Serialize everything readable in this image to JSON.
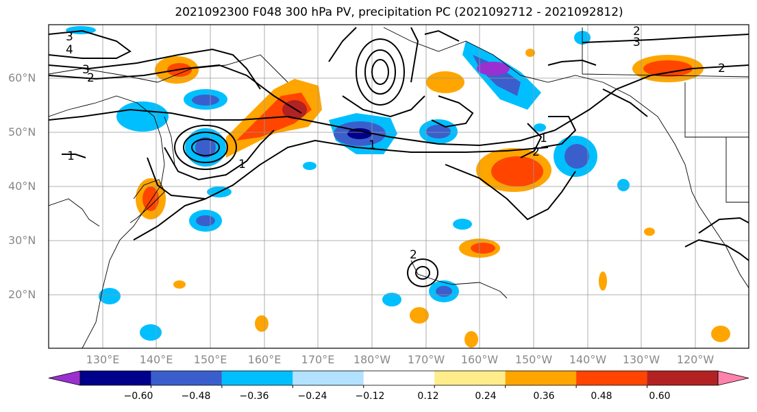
{
  "title": "2021092300 F048 300 hPa PV, precipitation PC (2021092712 - 2021092812)",
  "lat_labels": [
    "60°N",
    "50°N",
    "40°N",
    "30°N",
    "20°N"
  ],
  "lon_labels": [
    "130°E",
    "140°E",
    "150°E",
    "160°E",
    "170°E",
    "180°W",
    "170°W",
    "160°W",
    "150°W",
    "140°W",
    "130°W",
    "120°W"
  ],
  "colorbar": {
    "ticks": [
      "−0.60",
      "−0.48",
      "−0.36",
      "−0.24",
      "−0.12",
      "0.12",
      "0.24",
      "0.36",
      "0.48",
      "0.60"
    ],
    "colors": [
      "#9b30d0",
      "#00008b",
      "#3a5fcd",
      "#00bfff",
      "#b2e2ff",
      "#ffffff",
      "#ffec8b",
      "#ffa500",
      "#ff4500",
      "#b22222",
      "#ff82ab"
    ]
  },
  "contour_labels": [
    "3",
    "4",
    "3",
    "2",
    "2",
    "3",
    "2",
    "2",
    "1",
    "1",
    "2",
    "1",
    "1"
  ]
}
